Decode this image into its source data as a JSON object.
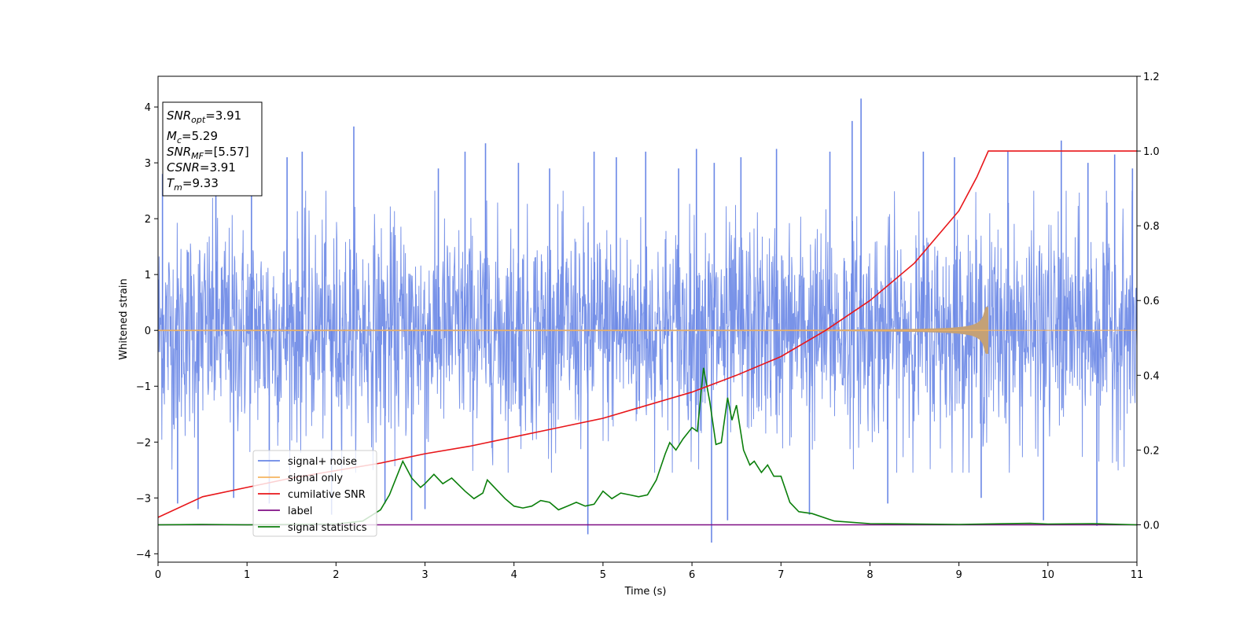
{
  "chart_data": {
    "type": "line",
    "xlabel": "Time (s)",
    "ylabel": "Whitened strain",
    "xlim": [
      0,
      11
    ],
    "ylim": [
      -4.15,
      4.55
    ],
    "y2lim": [
      -0.1,
      1.2
    ],
    "x_ticks": [
      0,
      1,
      2,
      3,
      4,
      5,
      6,
      7,
      8,
      9,
      10,
      11
    ],
    "y_ticks": [
      -4,
      -3,
      -2,
      -1,
      0,
      1,
      2,
      3,
      4
    ],
    "y_tick_labels": [
      "−4",
      "−3",
      "−2",
      "−1",
      "0",
      "1",
      "2",
      "3",
      "4"
    ],
    "y2_ticks": [
      0.0,
      0.2,
      0.4,
      0.6,
      0.8,
      1.0,
      1.2
    ],
    "y2_tick_labels": [
      "0.0",
      "0.2",
      "0.4",
      "0.6",
      "0.8",
      "1.0",
      "1.2"
    ],
    "legend_position": "lower-left",
    "series": [
      {
        "name": "signal+ noise",
        "axis": "left",
        "color": "#6a87e6",
        "description_values": "noise band",
        "envelope": {
          "x": [
            0,
            1,
            2,
            3,
            4,
            5,
            6,
            7,
            8,
            9,
            10,
            11
          ],
          "upper": [
            2.4,
            2.5,
            2.5,
            2.5,
            2.5,
            2.5,
            2.5,
            2.5,
            2.5,
            2.5,
            2.5,
            2.5
          ],
          "lower": [
            -2.4,
            -2.5,
            -2.5,
            -2.5,
            -2.5,
            -2.5,
            -2.5,
            -2.5,
            -2.5,
            -2.5,
            -2.5,
            -2.5
          ]
        },
        "spikes": [
          [
            0.05,
            2.8
          ],
          [
            0.22,
            -3.1
          ],
          [
            0.45,
            -3.2
          ],
          [
            0.65,
            2.7
          ],
          [
            0.85,
            -3.0
          ],
          [
            1.05,
            2.6
          ],
          [
            1.25,
            -3.1
          ],
          [
            1.45,
            3.1
          ],
          [
            1.62,
            3.2
          ],
          [
            1.95,
            -3.3
          ],
          [
            2.2,
            3.65
          ],
          [
            2.55,
            -3.1
          ],
          [
            2.85,
            -3.4
          ],
          [
            3.0,
            -3.2
          ],
          [
            3.15,
            2.9
          ],
          [
            3.45,
            3.2
          ],
          [
            3.68,
            3.35
          ],
          [
            4.05,
            3.0
          ],
          [
            4.4,
            2.9
          ],
          [
            4.83,
            -3.65
          ],
          [
            4.9,
            3.2
          ],
          [
            5.15,
            3.1
          ],
          [
            5.48,
            3.2
          ],
          [
            5.85,
            2.9
          ],
          [
            6.05,
            3.25
          ],
          [
            6.22,
            -3.8
          ],
          [
            6.25,
            3.0
          ],
          [
            6.4,
            -3.4
          ],
          [
            6.55,
            3.1
          ],
          [
            6.95,
            3.25
          ],
          [
            7.32,
            -3.3
          ],
          [
            7.55,
            3.2
          ],
          [
            7.8,
            3.75
          ],
          [
            7.9,
            4.15
          ],
          [
            8.2,
            -3.1
          ],
          [
            8.6,
            3.2
          ],
          [
            8.95,
            3.1
          ],
          [
            9.25,
            -3.0
          ],
          [
            9.55,
            3.2
          ],
          [
            9.95,
            -3.4
          ],
          [
            10.15,
            3.4
          ],
          [
            10.45,
            3.0
          ],
          [
            10.55,
            -3.5
          ],
          [
            10.75,
            3.15
          ],
          [
            10.95,
            2.9
          ]
        ]
      },
      {
        "name": "signal only",
        "axis": "left",
        "color": "#f5b461",
        "merger_time": 9.33,
        "chirp_mass": 5.29,
        "peak_amplitude": 0.42
      },
      {
        "name": "cumilative SNR",
        "axis": "right",
        "color": "#e8161a",
        "x": [
          0,
          0.5,
          1,
          1.5,
          2,
          2.5,
          3,
          3.5,
          4,
          4.5,
          5,
          5.5,
          6,
          6.5,
          7,
          7.5,
          8,
          8.5,
          9,
          9.2,
          9.33,
          10,
          11
        ],
        "y": [
          0.02,
          0.075,
          0.1,
          0.125,
          0.145,
          0.165,
          0.19,
          0.21,
          0.235,
          0.26,
          0.285,
          0.32,
          0.355,
          0.4,
          0.45,
          0.52,
          0.6,
          0.7,
          0.84,
          0.93,
          1.0,
          1.0,
          1.0
        ]
      },
      {
        "name": "label",
        "axis": "right",
        "color": "#7f0e84",
        "x": [
          0,
          11
        ],
        "y": [
          0,
          0
        ]
      },
      {
        "name": "signal statistics",
        "axis": "right",
        "color": "#0b7f0b",
        "x": [
          0,
          0.5,
          1.0,
          1.5,
          2.0,
          2.3,
          2.5,
          2.6,
          2.75,
          2.85,
          2.95,
          3.0,
          3.1,
          3.2,
          3.3,
          3.45,
          3.55,
          3.65,
          3.7,
          3.8,
          3.9,
          4.0,
          4.1,
          4.2,
          4.3,
          4.4,
          4.5,
          4.6,
          4.7,
          4.8,
          4.9,
          5.0,
          5.1,
          5.2,
          5.3,
          5.4,
          5.5,
          5.6,
          5.7,
          5.75,
          5.82,
          5.9,
          6.0,
          6.06,
          6.13,
          6.2,
          6.27,
          6.33,
          6.4,
          6.45,
          6.5,
          6.58,
          6.65,
          6.7,
          6.78,
          6.85,
          6.92,
          7.0,
          7.1,
          7.2,
          7.35,
          7.6,
          8.0,
          9.0,
          9.8,
          10.0,
          10.5,
          11.0
        ],
        "y": [
          0.0,
          0.001,
          0.0,
          0.001,
          0.002,
          0.01,
          0.04,
          0.08,
          0.17,
          0.125,
          0.1,
          0.11,
          0.135,
          0.11,
          0.125,
          0.09,
          0.07,
          0.085,
          0.12,
          0.095,
          0.07,
          0.05,
          0.045,
          0.05,
          0.065,
          0.06,
          0.04,
          0.05,
          0.06,
          0.05,
          0.055,
          0.09,
          0.07,
          0.085,
          0.08,
          0.075,
          0.08,
          0.12,
          0.19,
          0.22,
          0.2,
          0.23,
          0.26,
          0.25,
          0.42,
          0.33,
          0.215,
          0.22,
          0.34,
          0.28,
          0.32,
          0.2,
          0.16,
          0.17,
          0.14,
          0.16,
          0.13,
          0.13,
          0.06,
          0.035,
          0.03,
          0.01,
          0.003,
          0.001,
          0.004,
          0.002,
          0.003,
          0.0
        ]
      }
    ],
    "annotation": {
      "lines": [
        {
          "main": "SNR",
          "sub": "opt",
          "value": "=3.91",
          "italic": true
        },
        {
          "main": "M",
          "sub": "c",
          "value": "=5.29",
          "italic": true
        },
        {
          "main": "SNR",
          "sub": "MF",
          "value": "=[5.57]",
          "italic": true
        },
        {
          "main": "CSNR",
          "sub": "",
          "value": "=3.91",
          "italic": true
        },
        {
          "main": "T",
          "sub": "m",
          "value": "=9.33",
          "italic": true
        }
      ]
    }
  }
}
